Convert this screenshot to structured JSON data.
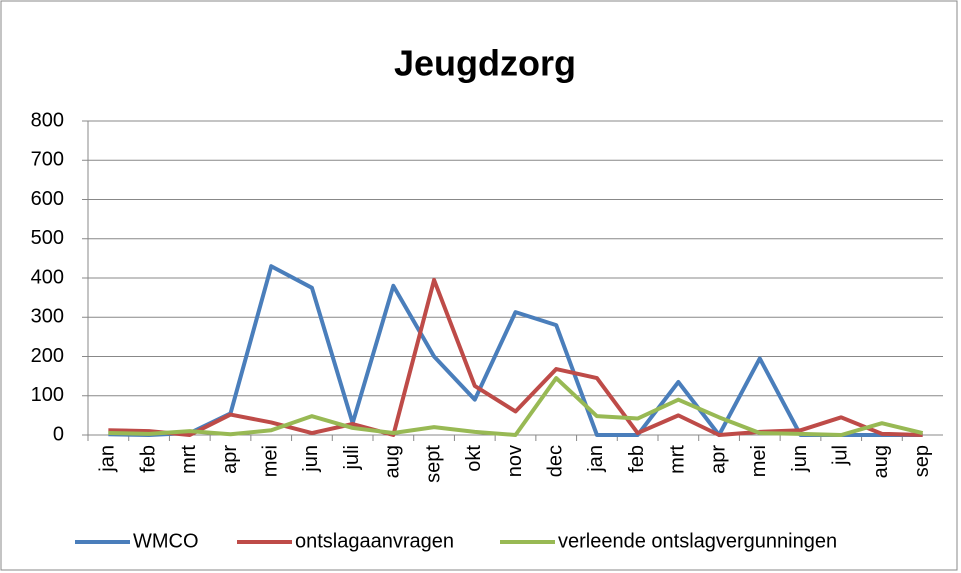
{
  "chart_data": {
    "type": "line",
    "title": "Jeugdzorg",
    "categories": [
      "jan",
      "feb",
      "mrt",
      "apr",
      "mei",
      "jun",
      "juli",
      "aug",
      "sept",
      "okt",
      "nov",
      "dec",
      "jan",
      "feb",
      "mrt",
      "apr",
      "mei",
      "jun",
      "jul",
      "aug",
      "sep"
    ],
    "series": [
      {
        "name": "WMCO",
        "color": "#4a7ebb",
        "values": [
          2,
          0,
          5,
          55,
          430,
          375,
          30,
          380,
          200,
          90,
          313,
          280,
          0,
          0,
          135,
          0,
          195,
          0,
          0,
          0,
          0
        ]
      },
      {
        "name": "ontslagaanvragen",
        "color": "#be4b48",
        "values": [
          12,
          10,
          0,
          52,
          32,
          5,
          28,
          0,
          395,
          125,
          60,
          168,
          145,
          5,
          50,
          0,
          8,
          12,
          45,
          3,
          0
        ]
      },
      {
        "name": "verleende ontslagvergunningen",
        "color": "#98b954",
        "values": [
          5,
          3,
          10,
          2,
          12,
          48,
          18,
          5,
          20,
          8,
          0,
          145,
          48,
          42,
          90,
          45,
          5,
          3,
          0,
          30,
          5
        ]
      }
    ],
    "ylim": [
      0,
      800
    ],
    "yticks": [
      0,
      100,
      200,
      300,
      400,
      500,
      600,
      700,
      800
    ],
    "grid": true,
    "legend": "bottom"
  }
}
